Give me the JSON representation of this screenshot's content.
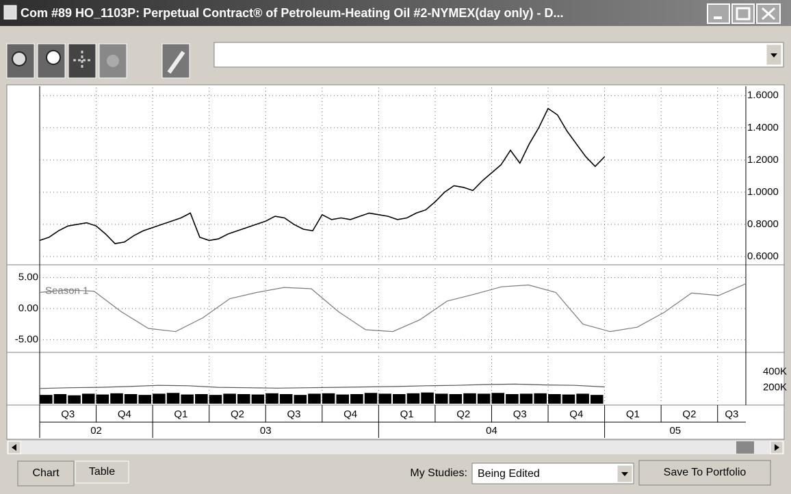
{
  "window": {
    "title": "Com #89 HO_1103P: Perpetual Contract® of Petroleum-Heating Oil #2-NYMEX(day only) - D...",
    "tabs": [
      "Chart",
      "Table"
    ],
    "studies_label": "My Studies:",
    "studies_value": "Being Edited",
    "save_button": "Save To Portfolio"
  },
  "time_axis": {
    "quarters": [
      "Q3",
      "Q4",
      "Q1",
      "Q2",
      "Q3",
      "Q4",
      "Q1",
      "Q2",
      "Q3",
      "Q4",
      "Q1",
      "Q2",
      "Q3"
    ],
    "years": [
      "02",
      "03",
      "04",
      "05"
    ],
    "grid": true
  },
  "chart_data": [
    {
      "type": "line",
      "ylim": [
        0.57,
        1.65
      ],
      "yticks": [
        {
          "value": 1.6,
          "label": "1.6000"
        },
        {
          "value": 1.4,
          "label": "1.4000"
        },
        {
          "value": 1.2,
          "label": "1.2000"
        },
        {
          "value": 1.0,
          "label": "1.0000"
        },
        {
          "value": 0.8,
          "label": "0.8000"
        },
        {
          "value": 0.6,
          "label": "0.6000"
        }
      ],
      "grid": true,
      "series": [
        {
          "color": "#000000",
          "values": [
            0.7,
            0.72,
            0.76,
            0.79,
            0.8,
            0.81,
            0.79,
            0.74,
            0.68,
            0.69,
            0.73,
            0.76,
            0.78,
            0.8,
            0.82,
            0.84,
            0.87,
            0.72,
            0.7,
            0.71,
            0.74,
            0.76,
            0.78,
            0.8,
            0.82,
            0.85,
            0.84,
            0.8,
            0.77,
            0.76,
            0.86,
            0.83,
            0.84,
            0.83,
            0.85,
            0.87,
            0.86,
            0.85,
            0.83,
            0.84,
            0.87,
            0.89,
            0.94,
            1.0,
            1.04,
            1.03,
            1.01,
            1.07,
            1.12,
            1.17,
            1.26,
            1.18,
            1.3,
            1.4,
            1.52,
            1.48,
            1.38,
            1.3,
            1.22,
            1.16,
            1.22
          ]
        }
      ]
    },
    {
      "type": "line",
      "ylim": [
        -6.5,
        6.5
      ],
      "yticks": [
        {
          "value": 5,
          "label": "5.00"
        },
        {
          "value": 0,
          "label": "0.00"
        },
        {
          "value": -5,
          "label": "-5.00"
        }
      ],
      "grid": true,
      "series": [
        {
          "name": "Season 1",
          "color": "#7a7a7a",
          "values": [
            2.6,
            3.0,
            2.8,
            -0.5,
            -3.2,
            -3.7,
            -1.5,
            1.6,
            2.6,
            3.4,
            3.2,
            -0.5,
            -3.4,
            -3.7,
            -1.8,
            1.2,
            2.3,
            3.5,
            3.8,
            2.6,
            -2.5,
            -3.7,
            -3.0,
            -0.6,
            2.5,
            2.1,
            4.0
          ]
        }
      ]
    },
    {
      "type": "bar",
      "ylim": [
        0,
        600000
      ],
      "yticks": [
        {
          "value": 400000,
          "label": "400K"
        },
        {
          "value": 200000,
          "label": "200K"
        }
      ],
      "grid": false,
      "series": [
        {
          "kind": "bar",
          "color": "#000000",
          "values": [
            110000,
            120000,
            105000,
            125000,
            115000,
            130000,
            120000,
            110000,
            125000,
            135000,
            115000,
            120000,
            110000,
            125000,
            120000,
            115000,
            130000,
            120000,
            110000,
            125000,
            130000,
            115000,
            120000,
            135000,
            125000,
            120000,
            130000,
            140000,
            125000,
            120000,
            130000,
            125000,
            135000,
            120000,
            125000,
            130000,
            120000,
            115000,
            125000,
            110000
          ]
        },
        {
          "kind": "line",
          "color": "#555555",
          "values": [
            190000,
            200000,
            205000,
            215000,
            230000,
            225000,
            205000,
            200000,
            195000,
            200000,
            205000,
            210000,
            215000,
            225000,
            230000,
            240000,
            245000,
            235000,
            230000,
            210000
          ]
        }
      ]
    }
  ]
}
